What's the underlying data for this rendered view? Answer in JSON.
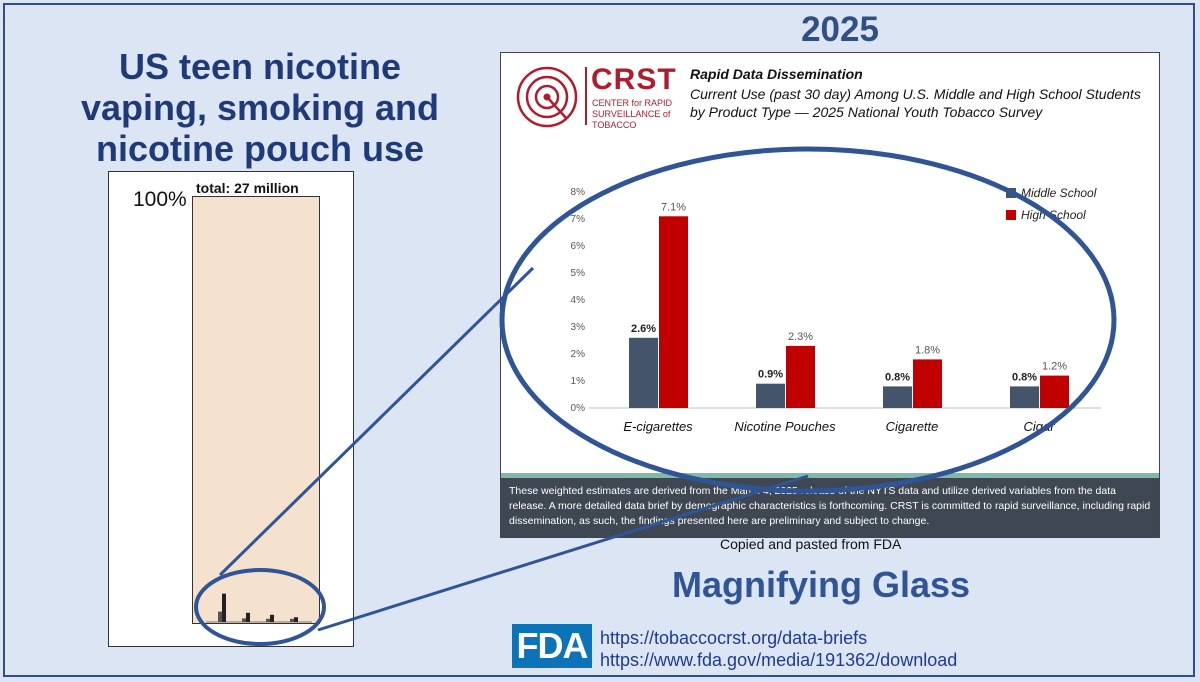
{
  "left_panel": {
    "title": "US teen nicotine vaping, smoking and nicotine pouch use",
    "axis_top_label": "100%",
    "total_label": "total:  27 million"
  },
  "right_panel": {
    "year": "2025",
    "card": {
      "logo_word": "CRST",
      "logo_subtitle": "CENTER for RAPID SURVEILLANCE of TOBACCO",
      "header_title": "Rapid Data Dissemination",
      "header_subtitle": "Current Use (past 30 day) Among U.S. Middle and High School Students by Product Type — 2025 National Youth Tobacco Survey",
      "footnote": "These weighted estimates are derived from the March 4, 2025 release of the NYTS data and utilize derived variables from the data release. A more detailed data brief by demographic characteristics is forthcoming. CRST is committed to rapid surveillance, including rapid dissemination, as such, the findings presented here are preliminary and subject to change."
    },
    "copied_note": "Copied and pasted from FDA",
    "magnify_label": "Magnifying Glass",
    "fda_logo": "FDA",
    "links": [
      "https://tobaccocrst.org/data-briefs",
      "https://www.fda.gov/media/191362/download"
    ]
  },
  "colors": {
    "middle_school": "#44546a",
    "high_school": "#c00000",
    "accent": "#2f5597",
    "crst_red": "#b01c2e"
  },
  "chart_data": {
    "type": "bar",
    "categories": [
      "E-cigarettes",
      "Nicotine Pouches",
      "Cigarette",
      "Cigar"
    ],
    "series": [
      {
        "name": "Middle School",
        "values": [
          2.6,
          0.9,
          0.8,
          0.8
        ],
        "labels": [
          "2.6%",
          "0.9%",
          "0.8%",
          "0.8%"
        ]
      },
      {
        "name": "High School",
        "values": [
          7.1,
          2.3,
          1.8,
          1.2
        ],
        "labels": [
          "7.1%",
          "2.3%",
          "1.8%",
          "1.2%"
        ]
      }
    ],
    "yticks": [
      "0%",
      "1%",
      "2%",
      "3%",
      "4%",
      "5%",
      "6%",
      "7%",
      "8%"
    ],
    "ylim": [
      0,
      8
    ],
    "legend_position": "top-right",
    "grid": false
  }
}
